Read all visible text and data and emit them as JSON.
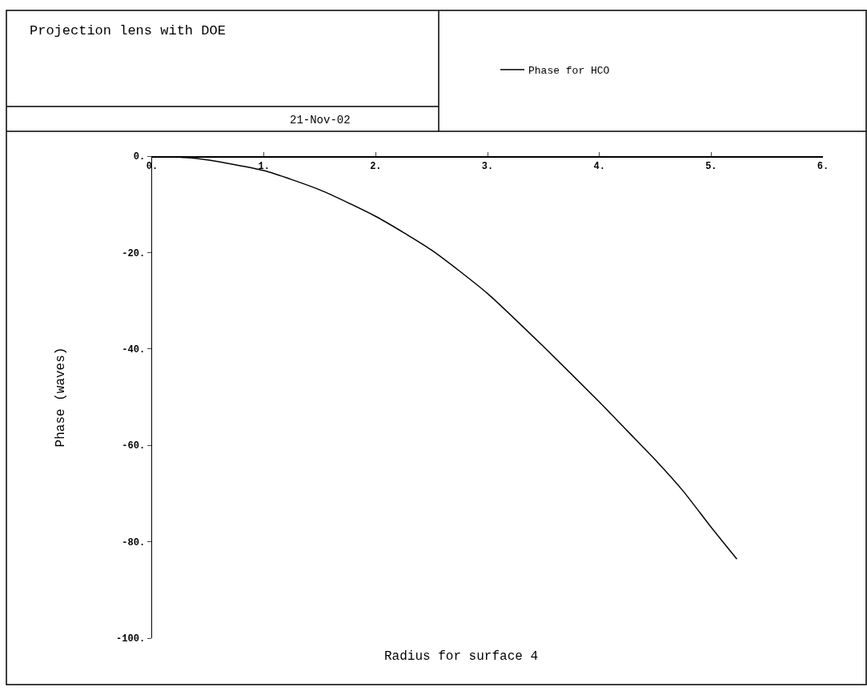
{
  "chart_data": {
    "type": "line",
    "title": "Projection lens with DOE",
    "xlabel": "Radius for surface 4",
    "ylabel": "Phase (waves)",
    "annotations": [
      "21-Nov-02"
    ],
    "series": [
      {
        "name": "Phase for HCO",
        "color": "#000000",
        "x": [
          0,
          0.3,
          0.5,
          1,
          1.5,
          2,
          2.5,
          3,
          3.5,
          4,
          4.25,
          4.5,
          4.75,
          5,
          5.23
        ],
        "values": [
          0,
          -0.3,
          -0.8,
          -3,
          -7,
          -12.5,
          -19.5,
          -28.5,
          -39.5,
          -51,
          -57,
          -63,
          -69.5,
          -77,
          -83.6
        ]
      }
    ],
    "xlim": [
      0,
      6
    ],
    "xticks": [
      {
        "value": 0,
        "label": "0."
      },
      {
        "value": 1,
        "label": "1."
      },
      {
        "value": 2,
        "label": "2."
      },
      {
        "value": 3,
        "label": "3."
      },
      {
        "value": 4,
        "label": "4."
      },
      {
        "value": 5,
        "label": "5."
      },
      {
        "value": 6,
        "label": "6."
      }
    ],
    "ylim": [
      -100,
      0
    ],
    "yticks": [
      {
        "value": 0,
        "label": "0."
      },
      {
        "value": -20,
        "label": "-20."
      },
      {
        "value": -40,
        "label": "-40."
      },
      {
        "value": -60,
        "label": "-60."
      },
      {
        "value": -80,
        "label": "-80."
      },
      {
        "value": -100,
        "label": "-100."
      }
    ],
    "grid": false,
    "legend": "top right",
    "marker": "none",
    "line_style": "solid"
  }
}
